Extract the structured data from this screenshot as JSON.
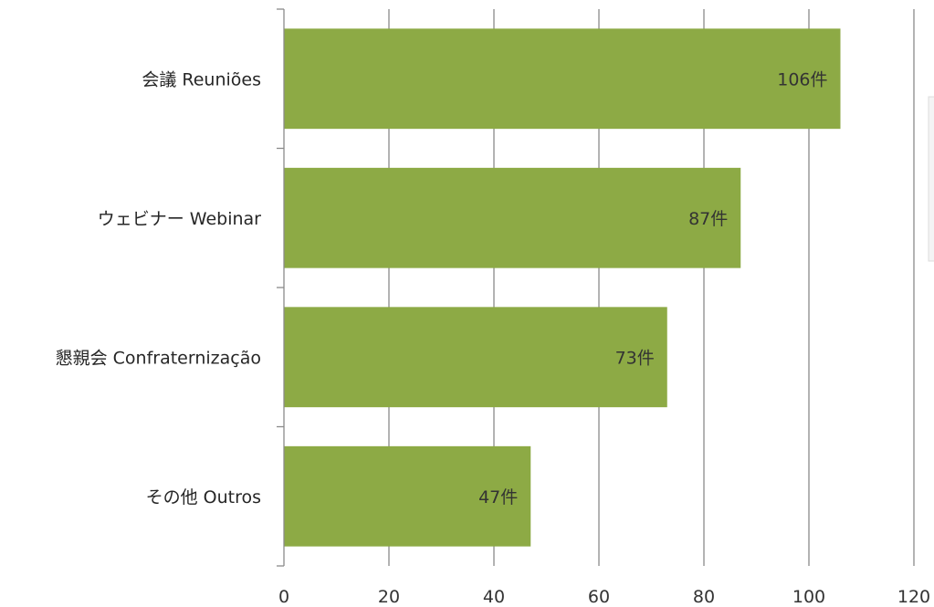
{
  "chart_data": {
    "type": "bar",
    "orientation": "horizontal",
    "categories": [
      "会議 Reuniões",
      "ウェビナー Webinar",
      "懇親会 Confraternização",
      "その他 Outros"
    ],
    "values": [
      106,
      87,
      73,
      47
    ],
    "data_labels": [
      "106件",
      "87件",
      "73件",
      "47件"
    ],
    "xlim": [
      0,
      120
    ],
    "xticks": [
      0,
      20,
      40,
      60,
      80,
      100,
      120
    ],
    "grid": "vertical",
    "colors": {
      "bar": "#8daa45",
      "grid": "#8a8a8a",
      "axis": "#8a8a8a",
      "text": "#262626",
      "label": "#333333"
    }
  }
}
